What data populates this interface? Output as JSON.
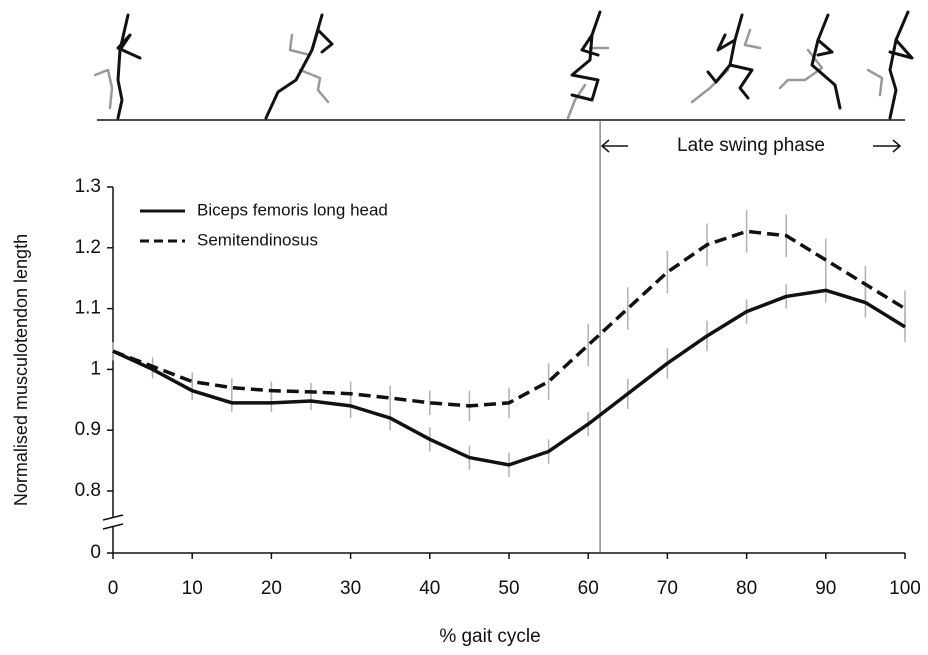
{
  "chart_data": {
    "type": "line",
    "x_label": "% gait cycle",
    "y_label": "Normalised musculotendon length",
    "x": [
      0,
      5,
      10,
      15,
      20,
      25,
      30,
      35,
      40,
      45,
      50,
      55,
      60,
      65,
      70,
      75,
      80,
      85,
      90,
      95,
      100
    ],
    "series": [
      {
        "name": "Biceps femoris long head",
        "color": "#111111",
        "dash": "solid",
        "values": [
          1.03,
          1.0,
          0.965,
          0.945,
          0.945,
          0.948,
          0.94,
          0.92,
          0.885,
          0.855,
          0.843,
          0.865,
          0.91,
          0.96,
          1.01,
          1.055,
          1.095,
          1.12,
          1.13,
          1.11,
          1.07
        ],
        "errors": [
          0.015,
          0.015,
          0.015,
          0.015,
          0.015,
          0.015,
          0.02,
          0.02,
          0.02,
          0.02,
          0.02,
          0.02,
          0.02,
          0.025,
          0.025,
          0.025,
          0.02,
          0.02,
          0.02,
          0.025,
          0.025
        ]
      },
      {
        "name": "Semitendinosus",
        "color": "#111111",
        "dash": "dashed",
        "values": [
          1.03,
          1.005,
          0.98,
          0.97,
          0.965,
          0.963,
          0.96,
          0.953,
          0.945,
          0.94,
          0.945,
          0.98,
          1.04,
          1.1,
          1.16,
          1.205,
          1.227,
          1.22,
          1.18,
          1.14,
          1.1
        ],
        "errors": [
          0.015,
          0.015,
          0.015,
          0.015,
          0.015,
          0.015,
          0.02,
          0.02,
          0.02,
          0.025,
          0.025,
          0.03,
          0.035,
          0.035,
          0.035,
          0.035,
          0.035,
          0.035,
          0.035,
          0.03,
          0.03
        ]
      }
    ],
    "error_color": "#b0b0b0",
    "xlim": [
      0,
      100
    ],
    "xticks": [
      0,
      10,
      20,
      30,
      40,
      50,
      60,
      70,
      80,
      90,
      100
    ],
    "ylim": [
      0,
      1.3
    ],
    "yticks": [
      0,
      0.8,
      0.9,
      1,
      1.1,
      1.2,
      1.3
    ],
    "y_break": [
      0,
      0.8
    ],
    "legend": "upper left",
    "phase_line_x": 61.5,
    "phase_label": "Late swing phase"
  }
}
